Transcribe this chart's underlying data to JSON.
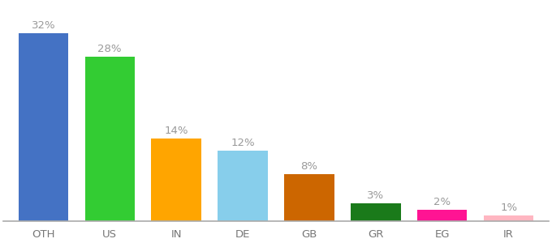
{
  "categories": [
    "OTH",
    "US",
    "IN",
    "DE",
    "GB",
    "GR",
    "EG",
    "IR"
  ],
  "values": [
    32,
    28,
    14,
    12,
    8,
    3,
    2,
    1
  ],
  "bar_colors": [
    "#4472c4",
    "#33cc33",
    "#ffa500",
    "#87ceeb",
    "#cc6600",
    "#1a7a1a",
    "#ff1493",
    "#ffb6c1"
  ],
  "label_color": "#999999",
  "x_tick_color": "#777777",
  "background_color": "#ffffff",
  "ylim": [
    0,
    37
  ],
  "bar_width": 0.75,
  "label_fontsize": 9.5,
  "tick_fontsize": 9.5
}
